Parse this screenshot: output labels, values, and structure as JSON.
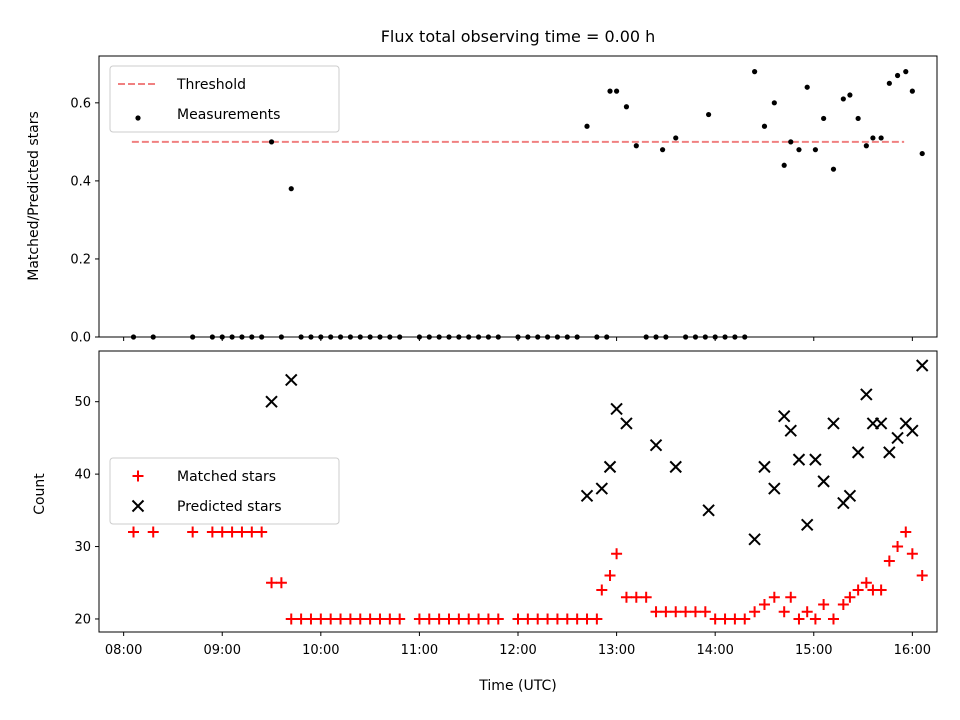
{
  "chart_data": [
    {
      "type": "scatter",
      "title": "Flux total observing time = 0.00 h",
      "ylabel": "Matched/Predicted stars",
      "xlabel": "",
      "xlim": [
        "07:45",
        "16:15"
      ],
      "ylim": [
        0,
        0.72
      ],
      "yticks": [
        0.0,
        0.2,
        0.4,
        0.6
      ],
      "ytick_labels": [
        "0.0",
        "0.2",
        "0.4",
        "0.6"
      ],
      "grid": false,
      "legend_position": "upper-left",
      "threshold": {
        "name": "Threshold",
        "y": 0.5,
        "x_start": "08:05",
        "x_end": "15:55",
        "color": "#f08080",
        "style": "dashed"
      },
      "series": [
        {
          "name": "Measurements",
          "marker": "dot",
          "color": "#000000",
          "points": [
            [
              "08:06",
              0.0
            ],
            [
              "08:18",
              0.0
            ],
            [
              "08:42",
              0.0
            ],
            [
              "08:54",
              0.0
            ],
            [
              "09:00",
              0.0
            ],
            [
              "09:06",
              0.0
            ],
            [
              "09:12",
              0.0
            ],
            [
              "09:18",
              0.0
            ],
            [
              "09:24",
              0.0
            ],
            [
              "09:30",
              0.5
            ],
            [
              "09:36",
              0.0
            ],
            [
              "09:42",
              0.38
            ],
            [
              "09:48",
              0.0
            ],
            [
              "09:54",
              0.0
            ],
            [
              "10:00",
              0.0
            ],
            [
              "10:06",
              0.0
            ],
            [
              "10:12",
              0.0
            ],
            [
              "10:18",
              0.0
            ],
            [
              "10:24",
              0.0
            ],
            [
              "10:30",
              0.0
            ],
            [
              "10:36",
              0.0
            ],
            [
              "10:42",
              0.0
            ],
            [
              "10:48",
              0.0
            ],
            [
              "11:00",
              0.0
            ],
            [
              "11:06",
              0.0
            ],
            [
              "11:12",
              0.0
            ],
            [
              "11:18",
              0.0
            ],
            [
              "11:24",
              0.0
            ],
            [
              "11:30",
              0.0
            ],
            [
              "11:36",
              0.0
            ],
            [
              "11:42",
              0.0
            ],
            [
              "11:48",
              0.0
            ],
            [
              "12:00",
              0.0
            ],
            [
              "12:06",
              0.0
            ],
            [
              "12:12",
              0.0
            ],
            [
              "12:18",
              0.0
            ],
            [
              "12:24",
              0.0
            ],
            [
              "12:30",
              0.0
            ],
            [
              "12:36",
              0.0
            ],
            [
              "12:42",
              0.54
            ],
            [
              "12:48",
              0.0
            ],
            [
              "12:54",
              0.0
            ],
            [
              "12:56",
              0.63
            ],
            [
              "13:00",
              0.63
            ],
            [
              "13:06",
              0.59
            ],
            [
              "13:12",
              0.49
            ],
            [
              "13:18",
              0.0
            ],
            [
              "13:24",
              0.0
            ],
            [
              "13:28",
              0.48
            ],
            [
              "13:30",
              0.0
            ],
            [
              "13:36",
              0.51
            ],
            [
              "13:42",
              0.0
            ],
            [
              "13:48",
              0.0
            ],
            [
              "13:54",
              0.0
            ],
            [
              "13:56",
              0.57
            ],
            [
              "14:00",
              0.0
            ],
            [
              "14:06",
              0.0
            ],
            [
              "14:12",
              0.0
            ],
            [
              "14:18",
              0.0
            ],
            [
              "14:24",
              0.68
            ],
            [
              "14:30",
              0.54
            ],
            [
              "14:36",
              0.6
            ],
            [
              "14:42",
              0.44
            ],
            [
              "14:46",
              0.5
            ],
            [
              "14:51",
              0.48
            ],
            [
              "14:56",
              0.64
            ],
            [
              "15:01",
              0.48
            ],
            [
              "15:06",
              0.56
            ],
            [
              "15:12",
              0.43
            ],
            [
              "15:18",
              0.61
            ],
            [
              "15:22",
              0.62
            ],
            [
              "15:27",
              0.56
            ],
            [
              "15:32",
              0.49
            ],
            [
              "15:36",
              0.51
            ],
            [
              "15:41",
              0.51
            ],
            [
              "15:46",
              0.65
            ],
            [
              "15:51",
              0.67
            ],
            [
              "15:56",
              0.68
            ],
            [
              "16:00",
              0.63
            ],
            [
              "16:06",
              0.47
            ]
          ]
        }
      ]
    },
    {
      "type": "scatter",
      "title": "",
      "ylabel": "Count",
      "xlabel": "Time (UTC)",
      "xlim": [
        "07:45",
        "16:15"
      ],
      "ylim": [
        18.2,
        57
      ],
      "yticks": [
        20,
        30,
        40,
        50
      ],
      "ytick_labels": [
        "20",
        "30",
        "40",
        "50"
      ],
      "xticks": [
        "08:00",
        "09:00",
        "10:00",
        "11:00",
        "12:00",
        "13:00",
        "14:00",
        "15:00",
        "16:00"
      ],
      "xtick_labels": [
        "08:00",
        "09:00",
        "10:00",
        "11:00",
        "12:00",
        "13:00",
        "14:00",
        "15:00",
        "16:00"
      ],
      "grid": false,
      "legend_position": "center-left",
      "series": [
        {
          "name": "Matched stars",
          "marker": "plus",
          "color": "#ff0000",
          "points": [
            [
              "08:06",
              32
            ],
            [
              "08:18",
              32
            ],
            [
              "08:42",
              32
            ],
            [
              "08:54",
              32
            ],
            [
              "09:00",
              32
            ],
            [
              "09:06",
              32
            ],
            [
              "09:12",
              32
            ],
            [
              "09:18",
              32
            ],
            [
              "09:24",
              32
            ],
            [
              "09:30",
              25
            ],
            [
              "09:36",
              25
            ],
            [
              "09:42",
              20
            ],
            [
              "09:48",
              20
            ],
            [
              "09:54",
              20
            ],
            [
              "10:00",
              20
            ],
            [
              "10:06",
              20
            ],
            [
              "10:12",
              20
            ],
            [
              "10:18",
              20
            ],
            [
              "10:24",
              20
            ],
            [
              "10:30",
              20
            ],
            [
              "10:36",
              20
            ],
            [
              "10:42",
              20
            ],
            [
              "10:48",
              20
            ],
            [
              "11:00",
              20
            ],
            [
              "11:06",
              20
            ],
            [
              "11:12",
              20
            ],
            [
              "11:18",
              20
            ],
            [
              "11:24",
              20
            ],
            [
              "11:30",
              20
            ],
            [
              "11:36",
              20
            ],
            [
              "11:42",
              20
            ],
            [
              "11:48",
              20
            ],
            [
              "12:00",
              20
            ],
            [
              "12:06",
              20
            ],
            [
              "12:12",
              20
            ],
            [
              "12:18",
              20
            ],
            [
              "12:24",
              20
            ],
            [
              "12:30",
              20
            ],
            [
              "12:36",
              20
            ],
            [
              "12:42",
              20
            ],
            [
              "12:48",
              20
            ],
            [
              "12:51",
              24
            ],
            [
              "12:56",
              26
            ],
            [
              "13:00",
              29
            ],
            [
              "13:06",
              23
            ],
            [
              "13:12",
              23
            ],
            [
              "13:18",
              23
            ],
            [
              "13:24",
              21
            ],
            [
              "13:30",
              21
            ],
            [
              "13:36",
              21
            ],
            [
              "13:42",
              21
            ],
            [
              "13:48",
              21
            ],
            [
              "13:54",
              21
            ],
            [
              "14:00",
              20
            ],
            [
              "14:06",
              20
            ],
            [
              "14:12",
              20
            ],
            [
              "14:18",
              20
            ],
            [
              "14:24",
              21
            ],
            [
              "14:30",
              22
            ],
            [
              "14:36",
              23
            ],
            [
              "14:42",
              21
            ],
            [
              "14:46",
              23
            ],
            [
              "14:51",
              20
            ],
            [
              "14:56",
              21
            ],
            [
              "15:01",
              20
            ],
            [
              "15:06",
              22
            ],
            [
              "15:12",
              20
            ],
            [
              "15:18",
              22
            ],
            [
              "15:22",
              23
            ],
            [
              "15:27",
              24
            ],
            [
              "15:32",
              25
            ],
            [
              "15:36",
              24
            ],
            [
              "15:41",
              24
            ],
            [
              "15:46",
              28
            ],
            [
              "15:51",
              30
            ],
            [
              "15:56",
              32
            ],
            [
              "16:00",
              29
            ],
            [
              "16:06",
              26
            ]
          ]
        },
        {
          "name": "Predicted stars",
          "marker": "x",
          "color": "#000000",
          "points": [
            [
              "09:30",
              50
            ],
            [
              "09:42",
              53
            ],
            [
              "12:42",
              37
            ],
            [
              "12:51",
              38
            ],
            [
              "12:56",
              41
            ],
            [
              "13:00",
              49
            ],
            [
              "13:06",
              47
            ],
            [
              "13:24",
              44
            ],
            [
              "13:36",
              41
            ],
            [
              "13:56",
              35
            ],
            [
              "14:24",
              31
            ],
            [
              "14:30",
              41
            ],
            [
              "14:36",
              38
            ],
            [
              "14:42",
              48
            ],
            [
              "14:46",
              46
            ],
            [
              "14:51",
              42
            ],
            [
              "14:56",
              33
            ],
            [
              "15:01",
              42
            ],
            [
              "15:06",
              39
            ],
            [
              "15:12",
              47
            ],
            [
              "15:18",
              36
            ],
            [
              "15:22",
              37
            ],
            [
              "15:27",
              43
            ],
            [
              "15:32",
              51
            ],
            [
              "15:36",
              47
            ],
            [
              "15:41",
              47
            ],
            [
              "15:46",
              43
            ],
            [
              "15:51",
              45
            ],
            [
              "15:56",
              47
            ],
            [
              "16:00",
              46
            ],
            [
              "16:06",
              55
            ]
          ]
        }
      ]
    }
  ]
}
